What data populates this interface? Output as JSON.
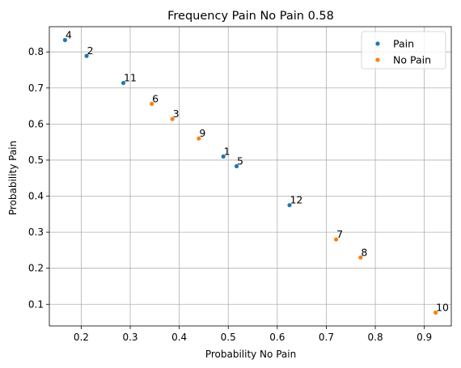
{
  "chart_data": {
    "type": "scatter",
    "title": "Frequency Pain No Pain 0.58",
    "xlabel": "Probability No Pain",
    "ylabel": "Probability Pain",
    "xlim": [
      0.135,
      0.955
    ],
    "ylim": [
      0.04,
      0.87
    ],
    "xticks": [
      0.2,
      0.3,
      0.4,
      0.5,
      0.6,
      0.7,
      0.8,
      0.9
    ],
    "yticks": [
      0.1,
      0.2,
      0.3,
      0.4,
      0.5,
      0.6,
      0.7,
      0.8
    ],
    "grid": true,
    "legend_position": "top-right",
    "series": [
      {
        "name": "Pain",
        "color": "#1f77b4",
        "points": [
          {
            "label": "4",
            "x": 0.167,
            "y": 0.833
          },
          {
            "label": "2",
            "x": 0.211,
            "y": 0.789
          },
          {
            "label": "11",
            "x": 0.286,
            "y": 0.714
          },
          {
            "label": "1",
            "x": 0.49,
            "y": 0.51
          },
          {
            "label": "5",
            "x": 0.517,
            "y": 0.483
          },
          {
            "label": "12",
            "x": 0.625,
            "y": 0.375
          }
        ]
      },
      {
        "name": "No Pain",
        "color": "#ff7f0e",
        "points": [
          {
            "label": "6",
            "x": 0.344,
            "y": 0.656
          },
          {
            "label": "3",
            "x": 0.386,
            "y": 0.614
          },
          {
            "label": "9",
            "x": 0.44,
            "y": 0.56
          },
          {
            "label": "7",
            "x": 0.72,
            "y": 0.28
          },
          {
            "label": "8",
            "x": 0.77,
            "y": 0.23
          },
          {
            "label": "10",
            "x": 0.923,
            "y": 0.077
          }
        ]
      }
    ]
  }
}
